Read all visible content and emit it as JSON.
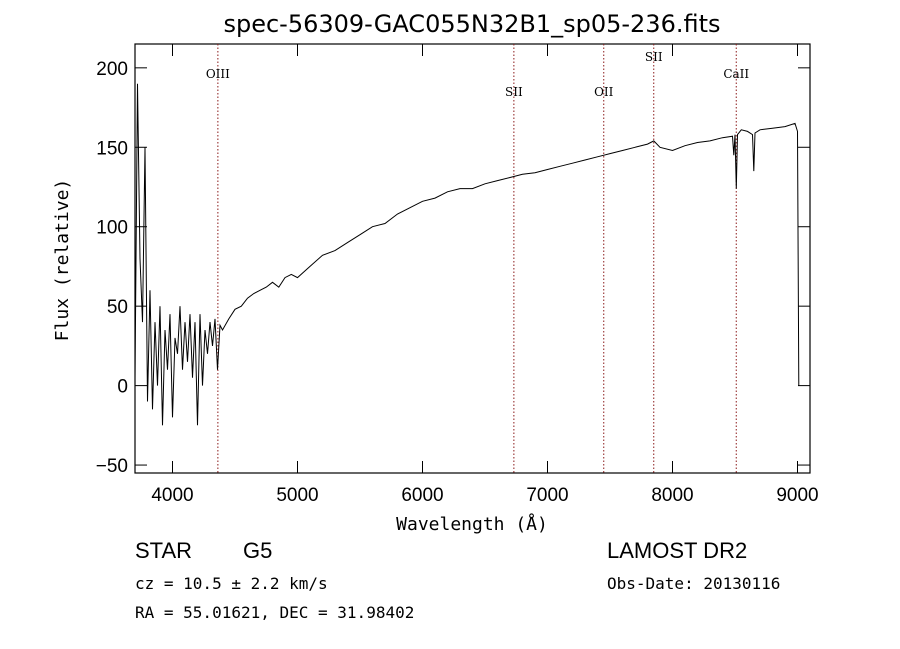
{
  "chart_data": {
    "type": "line",
    "title": "spec-56309-GAC055N32B1_sp05-236.fits",
    "xlabel": "Wavelength (Å)",
    "ylabel": "Flux (relative)",
    "xlim": [
      3700,
      9100
    ],
    "ylim": [
      -55,
      215
    ],
    "x_ticks": [
      4000,
      5000,
      6000,
      7000,
      8000,
      9000
    ],
    "y_ticks": [
      -50,
      0,
      50,
      100,
      150,
      200
    ],
    "line_color": "#000000",
    "marker_color": "#8b1a1a",
    "spectral_lines": [
      {
        "label": "OIII",
        "wavelength": 4363
      },
      {
        "label": "SII",
        "wavelength": 6731
      },
      {
        "label": "OII",
        "wavelength": 7450
      },
      {
        "label": "SII",
        "wavelength": 7850
      },
      {
        "label": "CaII",
        "wavelength": 8510
      }
    ],
    "series": [
      {
        "x": [
          3700,
          3720,
          3740,
          3760,
          3780,
          3800,
          3820,
          3840,
          3860,
          3880,
          3900,
          3920,
          3940,
          3960,
          3980,
          4000,
          4020,
          4040,
          4060,
          4080,
          4100,
          4120,
          4140,
          4160,
          4180,
          4200,
          4220,
          4240,
          4260,
          4280,
          4300,
          4320,
          4340,
          4360,
          4380,
          4400,
          4450,
          4500,
          4550,
          4600,
          4650,
          4700,
          4750,
          4800,
          4850,
          4900,
          4950,
          5000,
          5100,
          5200,
          5300,
          5400,
          5500,
          5600,
          5700,
          5800,
          5900,
          6000,
          6100,
          6200,
          6300,
          6400,
          6500,
          6600,
          6700,
          6800,
          6900,
          7000,
          7100,
          7200,
          7300,
          7400,
          7500,
          7600,
          7700,
          7800,
          7850,
          7900,
          8000,
          8100,
          8200,
          8300,
          8400,
          8480,
          8490,
          8500,
          8510,
          8520,
          8530,
          8540,
          8550,
          8600,
          8640,
          8650,
          8660,
          8700,
          8800,
          8900,
          8980,
          9000,
          9010
        ],
        "y": [
          5,
          190,
          80,
          40,
          150,
          -10,
          60,
          -15,
          40,
          0,
          50,
          -25,
          35,
          10,
          45,
          -20,
          30,
          20,
          50,
          10,
          40,
          15,
          45,
          5,
          40,
          -25,
          45,
          0,
          35,
          20,
          40,
          25,
          42,
          10,
          38,
          35,
          42,
          48,
          50,
          55,
          58,
          60,
          62,
          65,
          62,
          68,
          70,
          68,
          75,
          82,
          85,
          90,
          95,
          100,
          102,
          108,
          112,
          116,
          118,
          122,
          124,
          124,
          127,
          129,
          131,
          133,
          134,
          136,
          138,
          140,
          142,
          144,
          146,
          148,
          150,
          152,
          154,
          150,
          148,
          151,
          153,
          154,
          156,
          157,
          145,
          158,
          124,
          158,
          159,
          160,
          161,
          160,
          158,
          135,
          159,
          161,
          162,
          163,
          165,
          160,
          0
        ]
      }
    ]
  },
  "footer": {
    "object_class": "STAR",
    "subclass": "G5",
    "cz": "cz =  10.5 ± 2.2 km/s",
    "coords": "RA =  55.01621, DEC =  31.98402",
    "survey": "LAMOST DR2",
    "obs_date": "Obs-Date: 20130116"
  }
}
